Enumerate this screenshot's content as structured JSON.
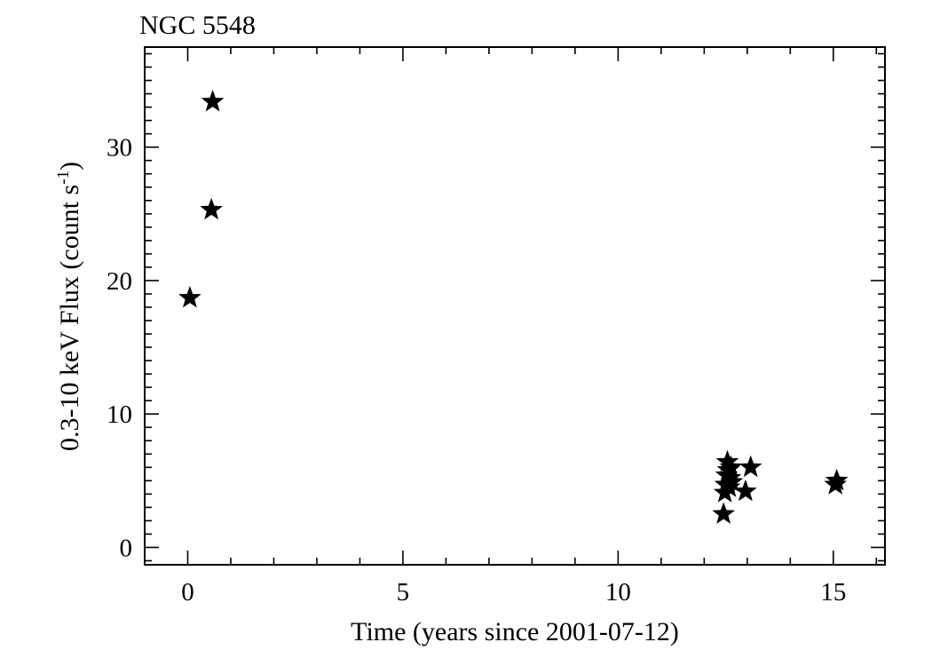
{
  "chart_data": {
    "type": "scatter",
    "title": "NGC 5548",
    "xlabel": "Time (years since 2001-07-12)",
    "ylabel": {
      "prefix": "0.3-10 keV Flux (count s",
      "superscript": "-1",
      "suffix": ")"
    },
    "xlim": [
      -1.0,
      16.2
    ],
    "ylim": [
      -1.3,
      37.5
    ],
    "x_ticks": [
      0,
      5,
      10,
      15
    ],
    "y_ticks": [
      0,
      10,
      20,
      30
    ],
    "x_minor_step": 1,
    "y_minor_step": 1,
    "grid": false,
    "marker": "star",
    "marker_color": "#000000",
    "series": [
      {
        "points": [
          {
            "x": 0.05,
            "y": 18.7
          },
          {
            "x": 0.55,
            "y": 25.3
          },
          {
            "x": 0.58,
            "y": 33.4
          },
          {
            "x": 12.45,
            "y": 2.5
          },
          {
            "x": 12.48,
            "y": 4.1
          },
          {
            "x": 12.5,
            "y": 4.7
          },
          {
            "x": 12.52,
            "y": 5.4
          },
          {
            "x": 12.54,
            "y": 6.4
          },
          {
            "x": 12.56,
            "y": 5.8
          },
          {
            "x": 12.58,
            "y": 4.5
          },
          {
            "x": 12.6,
            "y": 5.2
          },
          {
            "x": 12.62,
            "y": 6.0
          },
          {
            "x": 12.64,
            "y": 4.9
          },
          {
            "x": 12.96,
            "y": 4.2
          },
          {
            "x": 13.08,
            "y": 6.0
          },
          {
            "x": 15.05,
            "y": 4.7
          },
          {
            "x": 15.08,
            "y": 5.0
          }
        ]
      }
    ]
  }
}
